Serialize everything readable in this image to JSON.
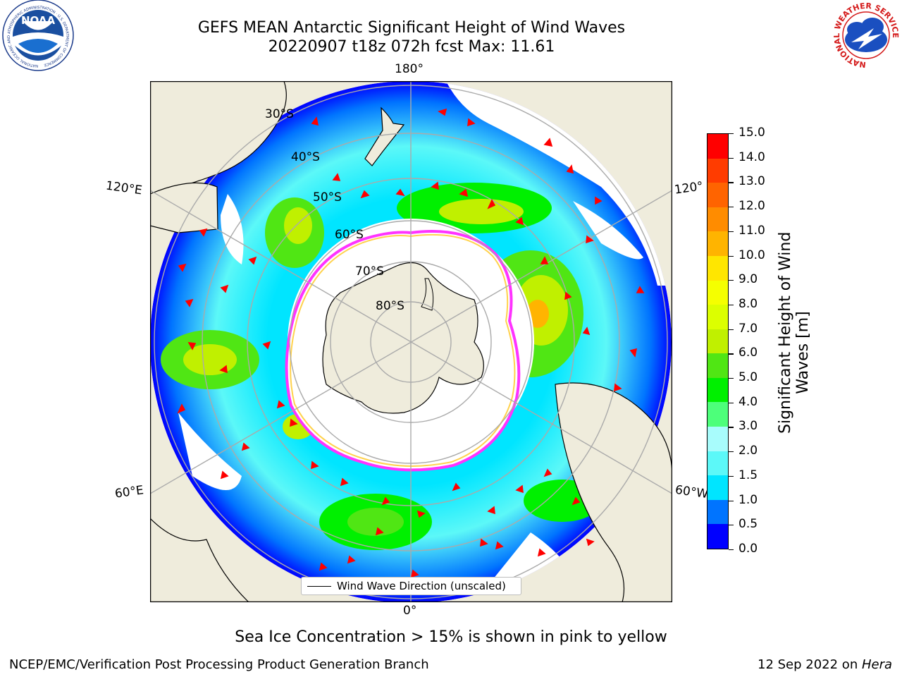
{
  "title": {
    "line1": "GEFS MEAN Antarctic Significant Height of Wind Waves",
    "line2": "20220907 t18z 072h fcst   Max: 11.61"
  },
  "logos": {
    "left": {
      "icon": "noaa-logo",
      "text": "NOAA",
      "ring_text": "NATIONAL OCEANIC AND ATMOSPHERIC ADMINISTRATION · U.S. DEPARTMENT OF COMMERCE"
    },
    "right": {
      "icon": "nws-logo",
      "ring_text": "NATIONAL WEATHER SERVICE"
    }
  },
  "map": {
    "projection": "south-polar-stereographic",
    "longitude_labels": {
      "top": "180°",
      "bottom": "0°",
      "left_upper": "120°E",
      "left_lower": "60°E",
      "right_upper": "120°",
      "right_lower": "60°W"
    },
    "latitude_labels": [
      "30°S",
      "40°S",
      "50°S",
      "60°S",
      "70°S",
      "80°S"
    ],
    "colors": {
      "land": "#efecdc",
      "open_ocean": "#ffffff",
      "sea_ice_edge": [
        "#ff33ff",
        "#ffd24d"
      ],
      "grid": "#aaaaaa",
      "arrow": "#ff0000"
    }
  },
  "legend": {
    "label": "Wind Wave Direction (unscaled)"
  },
  "colorbar": {
    "label_line1": "Significant Height of Wind",
    "label_line2": "Waves [m]",
    "ticks": [
      "0.0",
      "0.5",
      "1.0",
      "1.5",
      "2.0",
      "3.0",
      "4.0",
      "5.0",
      "6.0",
      "7.0",
      "8.0",
      "9.0",
      "10.0",
      "11.0",
      "12.0",
      "13.0",
      "14.0",
      "15.0"
    ],
    "colors": [
      "#0000ff",
      "#0074ff",
      "#00e5ff",
      "#5cf8f8",
      "#a8fcfc",
      "#4dff7a",
      "#00f000",
      "#50e614",
      "#c0f000",
      "#dcff00",
      "#f5ff00",
      "#ffe600",
      "#ffb400",
      "#ff8c00",
      "#ff6400",
      "#ff3c00",
      "#ff0000"
    ]
  },
  "footnote": "Sea Ice Concentration > 15% is shown in pink to yellow",
  "credit": "NCEP/EMC/Verification Post Processing Product Generation Branch",
  "date": {
    "text": "12 Sep 2022 on ",
    "emphasis": "Hera"
  }
}
